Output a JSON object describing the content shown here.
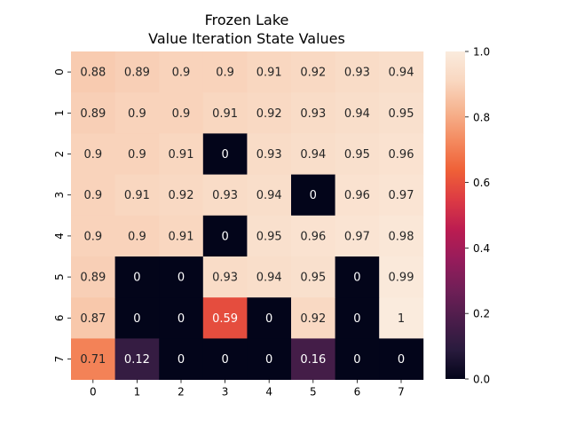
{
  "chart_data": {
    "type": "heatmap",
    "title_lines": [
      "Frozen Lake",
      "Value Iteration State Values"
    ],
    "x_ticks": [
      "0",
      "1",
      "2",
      "3",
      "4",
      "5",
      "6",
      "7"
    ],
    "y_ticks": [
      "0",
      "1",
      "2",
      "3",
      "4",
      "5",
      "6",
      "7"
    ],
    "values": [
      [
        0.88,
        0.89,
        0.9,
        0.9,
        0.91,
        0.92,
        0.93,
        0.94
      ],
      [
        0.89,
        0.9,
        0.9,
        0.91,
        0.92,
        0.93,
        0.94,
        0.95
      ],
      [
        0.9,
        0.9,
        0.91,
        0,
        0.93,
        0.94,
        0.95,
        0.96
      ],
      [
        0.9,
        0.91,
        0.92,
        0.93,
        0.94,
        0,
        0.96,
        0.97
      ],
      [
        0.9,
        0.9,
        0.91,
        0,
        0.95,
        0.96,
        0.97,
        0.98
      ],
      [
        0.89,
        0,
        0,
        0.93,
        0.94,
        0.95,
        0,
        0.99
      ],
      [
        0.87,
        0,
        0,
        0.59,
        0,
        0.92,
        0,
        1
      ],
      [
        0.71,
        0.12,
        0,
        0,
        0,
        0.16,
        0,
        0
      ]
    ],
    "colorbar": {
      "min": 0.0,
      "max": 1.0,
      "ticks": [
        "0.0",
        "0.2",
        "0.4",
        "0.6",
        "0.8",
        "1.0"
      ],
      "colormap": "rocket",
      "stops": [
        "#03051a",
        "#2a1b3e",
        "#4c1d4b",
        "#701f57",
        "#961c5b",
        "#bb1c51",
        "#dc3a44",
        "#ef6037",
        "#f48a5f",
        "#f6b38f",
        "#f9d7c0",
        "#faebdd"
      ]
    },
    "grid": false
  }
}
